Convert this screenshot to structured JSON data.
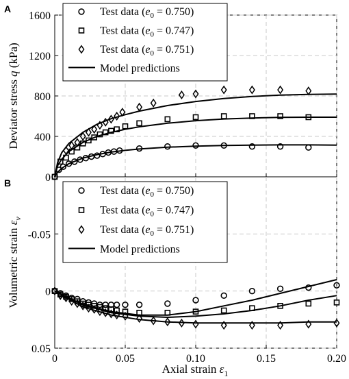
{
  "chart_data": [
    {
      "panel_label": "A",
      "type": "scatter",
      "ylabel": "Deviator stress q (kPa)",
      "ylabel_main": "Deviator stress ",
      "ylabel_var": "q",
      "ylabel_unit": " (kPa)",
      "xlim": [
        0,
        0.2
      ],
      "ylim": [
        0,
        1600
      ],
      "yticks": [
        0,
        400,
        800,
        1200,
        1600
      ],
      "grid": true,
      "legend_position": "top-left",
      "series": [
        {
          "name": "Test data (e0 = 0.750)",
          "legend_prefix": "Test data (",
          "legend_var": "e",
          "legend_sub": "0",
          "legend_suffix": " = 0.750)",
          "marker": "circle",
          "x": [
            0.0,
            0.003,
            0.006,
            0.01,
            0.014,
            0.018,
            0.022,
            0.026,
            0.03,
            0.034,
            0.038,
            0.042,
            0.046,
            0.06,
            0.08,
            0.1,
            0.12,
            0.14,
            0.16,
            0.18
          ],
          "y": [
            0,
            70,
            100,
            130,
            150,
            170,
            185,
            200,
            210,
            225,
            240,
            250,
            260,
            280,
            300,
            310,
            310,
            300,
            300,
            290
          ]
        },
        {
          "name": "Test data (e0 = 0.747)",
          "legend_prefix": "Test data (",
          "legend_var": "e",
          "legend_sub": "0",
          "legend_suffix": " = 0.747)",
          "marker": "square",
          "x": [
            0.0,
            0.004,
            0.008,
            0.012,
            0.016,
            0.02,
            0.024,
            0.028,
            0.032,
            0.036,
            0.04,
            0.044,
            0.05,
            0.06,
            0.08,
            0.1,
            0.12,
            0.14,
            0.16,
            0.18
          ],
          "y": [
            0,
            150,
            190,
            250,
            290,
            330,
            360,
            390,
            420,
            440,
            455,
            470,
            500,
            530,
            570,
            590,
            600,
            600,
            600,
            590
          ]
        },
        {
          "name": "Test data (e0 = 0.751)",
          "legend_prefix": "Test data (",
          "legend_var": "e",
          "legend_sub": "0",
          "legend_suffix": " = 0.751)",
          "marker": "diamond",
          "x": [
            0.008,
            0.012,
            0.016,
            0.02,
            0.024,
            0.028,
            0.032,
            0.036,
            0.04,
            0.044,
            0.048,
            0.06,
            0.07,
            0.09,
            0.1,
            0.12,
            0.14,
            0.16,
            0.18
          ],
          "y": [
            260,
            310,
            340,
            400,
            440,
            470,
            510,
            540,
            570,
            600,
            640,
            690,
            730,
            810,
            820,
            860,
            860,
            860,
            850
          ]
        }
      ],
      "model_predictions": {
        "name": "Model predictions",
        "curves": [
          {
            "x": [
              0,
              0.002,
              0.005,
              0.01,
              0.02,
              0.03,
              0.04,
              0.05,
              0.06,
              0.08,
              0.1,
              0.12,
              0.14,
              0.16,
              0.18,
              0.2
            ],
            "y": [
              0,
              45,
              85,
              130,
              185,
              220,
              245,
              262,
              275,
              293,
              303,
              310,
              314,
              316,
              316,
              314
            ]
          },
          {
            "x": [
              0,
              0.002,
              0.005,
              0.01,
              0.02,
              0.03,
              0.04,
              0.05,
              0.06,
              0.08,
              0.1,
              0.12,
              0.14,
              0.16,
              0.18,
              0.2
            ],
            "y": [
              0,
              110,
              175,
              250,
              340,
              400,
              440,
              470,
              495,
              530,
              555,
              572,
              582,
              588,
              590,
              590
            ]
          },
          {
            "x": [
              0,
              0.002,
              0.005,
              0.01,
              0.02,
              0.03,
              0.04,
              0.05,
              0.06,
              0.08,
              0.1,
              0.12,
              0.14,
              0.16,
              0.18,
              0.2
            ],
            "y": [
              0,
              140,
              240,
              330,
              440,
              520,
              575,
              615,
              650,
              705,
              745,
              775,
              795,
              808,
              815,
              818
            ]
          }
        ]
      }
    },
    {
      "panel_label": "B",
      "type": "scatter",
      "ylabel": "Volumetric strain εv",
      "ylabel_main": "Volumetric strain ",
      "ylabel_var": "ε",
      "ylabel_sub": "v",
      "xlabel_main": "Axial strain ",
      "xlabel_var": "ε",
      "xlabel_sub": "1",
      "xlim": [
        0,
        0.2
      ],
      "ylim": [
        0.05,
        -0.1
      ],
      "y_inverted": true,
      "yticks": [
        -0.05,
        0,
        0.05
      ],
      "ytick_labels": [
        "-0.05",
        "0",
        "0.05"
      ],
      "xticks": [
        0,
        0.05,
        0.1,
        0.15,
        0.2
      ],
      "xtick_labels": [
        "0",
        "0.05",
        "0.10",
        "0.15",
        "0.20"
      ],
      "grid": true,
      "legend_position": "top-left",
      "series": [
        {
          "name": "Test data (e0 = 0.750)",
          "legend_prefix": "Test data (",
          "legend_var": "e",
          "legend_sub": "0",
          "legend_suffix": " = 0.750)",
          "marker": "circle",
          "x": [
            0.0,
            0.004,
            0.008,
            0.012,
            0.016,
            0.02,
            0.024,
            0.028,
            0.032,
            0.036,
            0.04,
            0.044,
            0.05,
            0.06,
            0.08,
            0.1,
            0.12,
            0.14,
            0.16,
            0.18,
            0.2
          ],
          "y": [
            0.0,
            0.002,
            0.004,
            0.006,
            0.007,
            0.009,
            0.01,
            0.011,
            0.012,
            0.012,
            0.012,
            0.012,
            0.012,
            0.012,
            0.011,
            0.008,
            0.004,
            0.0,
            -0.002,
            -0.003,
            -0.005
          ]
        },
        {
          "name": "Test data (e0 = 0.747)",
          "legend_prefix": "Test data (",
          "legend_var": "e",
          "legend_sub": "0",
          "legend_suffix": " = 0.747)",
          "marker": "square",
          "x": [
            0.0,
            0.004,
            0.008,
            0.012,
            0.016,
            0.02,
            0.024,
            0.028,
            0.032,
            0.036,
            0.04,
            0.044,
            0.05,
            0.06,
            0.08,
            0.1,
            0.12,
            0.14,
            0.16,
            0.18,
            0.2
          ],
          "y": [
            0.0,
            0.003,
            0.005,
            0.007,
            0.009,
            0.011,
            0.012,
            0.013,
            0.014,
            0.015,
            0.016,
            0.017,
            0.018,
            0.019,
            0.019,
            0.018,
            0.017,
            0.015,
            0.013,
            0.011,
            0.01
          ]
        },
        {
          "name": "Test data (e0 = 0.751)",
          "legend_prefix": "Test data (",
          "legend_var": "e",
          "legend_sub": "0",
          "legend_suffix": " = 0.751)",
          "marker": "diamond",
          "x": [
            0.0,
            0.004,
            0.008,
            0.012,
            0.016,
            0.02,
            0.024,
            0.028,
            0.032,
            0.036,
            0.04,
            0.044,
            0.05,
            0.06,
            0.07,
            0.08,
            0.09,
            0.1,
            0.12,
            0.14,
            0.16,
            0.18,
            0.2
          ],
          "y": [
            0.0,
            0.004,
            0.006,
            0.009,
            0.011,
            0.013,
            0.015,
            0.016,
            0.018,
            0.019,
            0.02,
            0.021,
            0.022,
            0.024,
            0.026,
            0.027,
            0.028,
            0.029,
            0.03,
            0.03,
            0.03,
            0.029,
            0.028
          ]
        }
      ],
      "model_predictions": {
        "name": "Model predictions",
        "curves": [
          {
            "x": [
              0,
              0.02,
              0.04,
              0.06,
              0.08,
              0.1,
              0.12,
              0.14,
              0.16,
              0.18,
              0.2
            ],
            "y": [
              0,
              0.012,
              0.018,
              0.021,
              0.021,
              0.018,
              0.013,
              0.008,
              0.002,
              -0.004,
              -0.01
            ]
          },
          {
            "x": [
              0,
              0.02,
              0.04,
              0.06,
              0.08,
              0.1,
              0.12,
              0.14,
              0.16,
              0.18,
              0.2
            ],
            "y": [
              0,
              0.012,
              0.019,
              0.022,
              0.023,
              0.022,
              0.02,
              0.017,
              0.013,
              0.008,
              0.004
            ]
          },
          {
            "x": [
              0,
              0.02,
              0.04,
              0.06,
              0.08,
              0.1,
              0.12,
              0.14,
              0.16,
              0.18,
              0.2
            ],
            "y": [
              0,
              0.014,
              0.021,
              0.025,
              0.027,
              0.028,
              0.028,
              0.028,
              0.028,
              0.027,
              0.027
            ]
          }
        ]
      }
    }
  ]
}
